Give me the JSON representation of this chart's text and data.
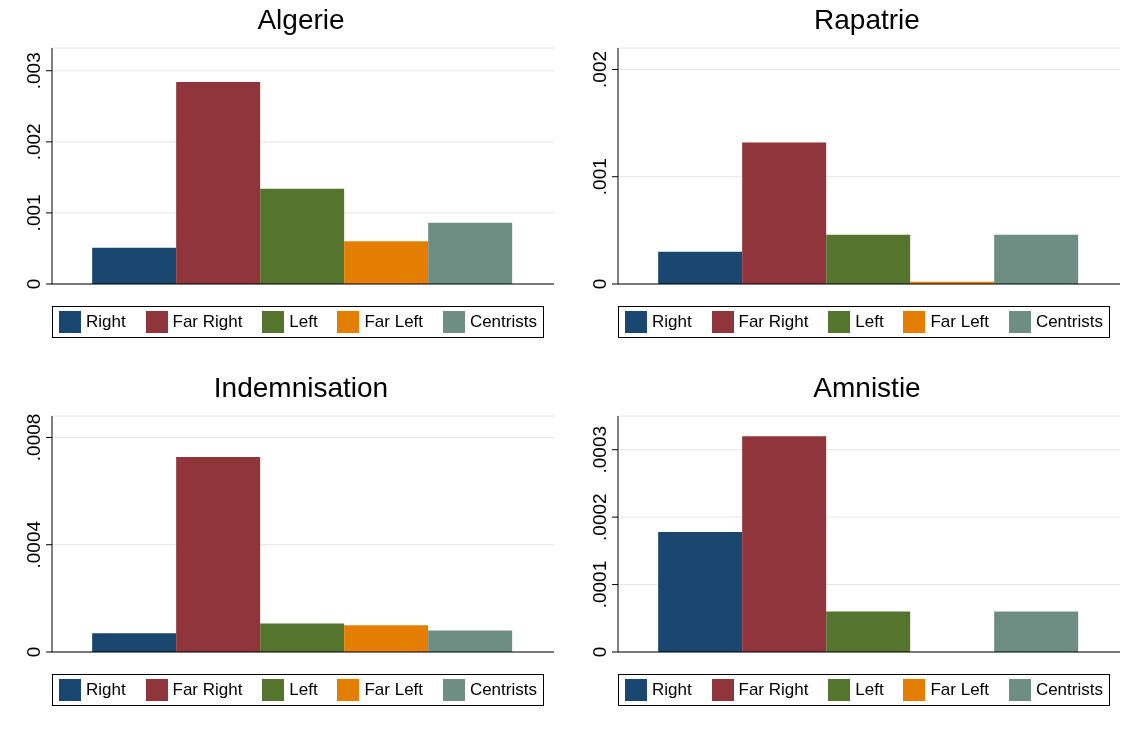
{
  "chart_data": [
    {
      "type": "bar",
      "title": "Algerie",
      "categories": [
        null
      ],
      "series": [
        {
          "name": "Right",
          "color": "#1a476f",
          "values": [
            0.00051
          ]
        },
        {
          "name": "Far Right",
          "color": "#90353b",
          "values": [
            0.00284
          ]
        },
        {
          "name": "Left",
          "color": "#55752f",
          "values": [
            0.00134
          ]
        },
        {
          "name": "Far Left",
          "color": "#e37e00",
          "values": [
            0.0006
          ]
        },
        {
          "name": "Centrists",
          "color": "#6e8e84",
          "values": [
            0.00086
          ]
        }
      ],
      "ylim": [
        0,
        0.00332
      ],
      "yticks": [
        {
          "value": 0,
          "label": "0"
        },
        {
          "value": 0.001,
          "label": ".001"
        },
        {
          "value": 0.002,
          "label": ".002"
        },
        {
          "value": 0.003,
          "label": ".003"
        }
      ],
      "grid": "y",
      "legend": "bottom"
    },
    {
      "type": "bar",
      "title": "Rapatrie",
      "categories": [
        null
      ],
      "series": [
        {
          "name": "Right",
          "color": "#1a476f",
          "values": [
            0.0003
          ]
        },
        {
          "name": "Far Right",
          "color": "#90353b",
          "values": [
            0.00132
          ]
        },
        {
          "name": "Left",
          "color": "#55752f",
          "values": [
            0.00046
          ]
        },
        {
          "name": "Far Left",
          "color": "#e37e00",
          "values": [
            2e-05
          ]
        },
        {
          "name": "Centrists",
          "color": "#6e8e84",
          "values": [
            0.00046
          ]
        }
      ],
      "ylim": [
        0,
        0.0022
      ],
      "yticks": [
        {
          "value": 0,
          "label": "0"
        },
        {
          "value": 0.001,
          "label": ".001"
        },
        {
          "value": 0.002,
          "label": ".002"
        }
      ],
      "grid": "y",
      "legend": "bottom"
    },
    {
      "type": "bar",
      "title": "Indemnisation",
      "categories": [
        null
      ],
      "series": [
        {
          "name": "Right",
          "color": "#1a476f",
          "values": [
            7e-05
          ]
        },
        {
          "name": "Far Right",
          "color": "#90353b",
          "values": [
            0.000727
          ]
        },
        {
          "name": "Left",
          "color": "#55752f",
          "values": [
            0.000106
          ]
        },
        {
          "name": "Far Left",
          "color": "#e37e00",
          "values": [
            0.0001
          ]
        },
        {
          "name": "Centrists",
          "color": "#6e8e84",
          "values": [
            8e-05
          ]
        }
      ],
      "ylim": [
        0,
        0.00088
      ],
      "yticks": [
        {
          "value": 0,
          "label": "0"
        },
        {
          "value": 0.0004,
          "label": ".0004"
        },
        {
          "value": 0.0008,
          "label": ".0008"
        }
      ],
      "grid": "y",
      "legend": "bottom"
    },
    {
      "type": "bar",
      "title": "Amnistie",
      "categories": [
        null
      ],
      "series": [
        {
          "name": "Right",
          "color": "#1a476f",
          "values": [
            0.000178
          ]
        },
        {
          "name": "Far Right",
          "color": "#90353b",
          "values": [
            0.00032
          ]
        },
        {
          "name": "Left",
          "color": "#55752f",
          "values": [
            6e-05
          ]
        },
        {
          "name": "Far Left",
          "color": "#e37e00",
          "values": [
            0
          ]
        },
        {
          "name": "Centrists",
          "color": "#6e8e84",
          "values": [
            6e-05
          ]
        }
      ],
      "ylim": [
        0,
        0.00035
      ],
      "yticks": [
        {
          "value": 0,
          "label": "0"
        },
        {
          "value": 0.0001,
          "label": ".0001"
        },
        {
          "value": 0.0002,
          "label": ".0002"
        },
        {
          "value": 0.0003,
          "label": ".0003"
        }
      ],
      "grid": "y",
      "legend": "bottom"
    }
  ]
}
